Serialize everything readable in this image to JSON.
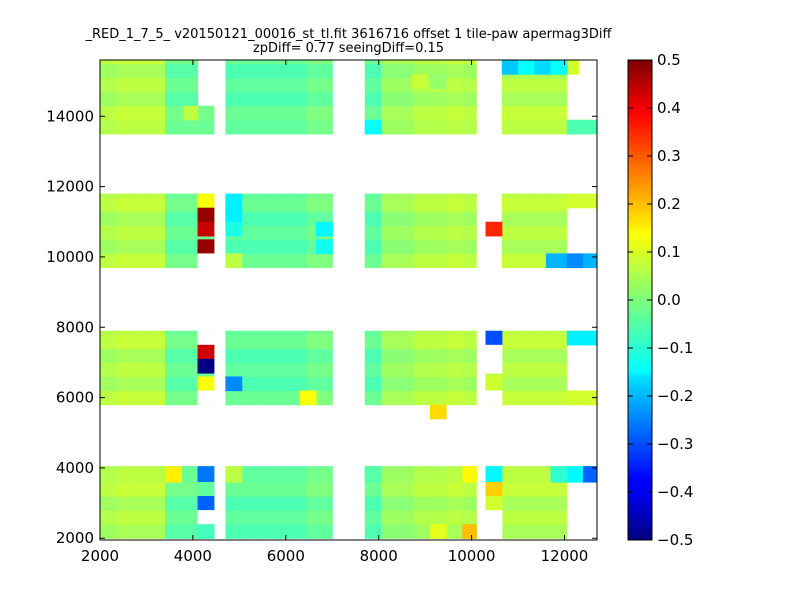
{
  "chart_data": {
    "type": "heatmap",
    "title": "_RED_1_7_5_ v20150121_00016_st_tl.fit 3616716 offset 1 tile-paw apermag3Diff",
    "subtitle": "zpDiff= 0.77 seeingDiff=0.15",
    "xlabel": "",
    "ylabel": "",
    "xlim": [
      2000,
      12700
    ],
    "ylim": [
      1950,
      15600
    ],
    "x_ticks": [
      2000,
      4000,
      6000,
      8000,
      10000,
      12000
    ],
    "x_tick_labels": [
      "2000",
      "4000",
      "6000",
      "8000",
      "10000",
      "12000"
    ],
    "y_ticks": [
      2000,
      4000,
      6000,
      8000,
      10000,
      12000,
      14000
    ],
    "y_tick_labels": [
      "2000",
      "4000",
      "6000",
      "8000",
      "10000",
      "12000",
      "14000"
    ],
    "grid": false,
    "colormap": "jet",
    "colorbar": {
      "vmin": -0.5,
      "vmax": 0.5,
      "ticks": [
        0.5,
        0.4,
        0.3,
        0.2,
        0.1,
        0.0,
        -0.1,
        -0.2,
        -0.3,
        -0.4,
        -0.5
      ],
      "tick_labels": [
        "0.5",
        "0.4",
        "0.3",
        "0.2",
        "0.1",
        "0.0",
        "−0.1",
        "−0.2",
        "−0.3",
        "−0.4",
        "−0.5"
      ]
    },
    "cell_width": 350,
    "cell_height": 400,
    "default_values": {
      "col_values": [
        0.04,
        0.05,
        0.05,
        0.05,
        -0.03,
        -0.03,
        -0.03,
        -0.04,
        -0.04,
        -0.04,
        -0.04,
        -0.04,
        -0.02,
        -0.02,
        -0.03,
        -0.03,
        -0.04,
        0.02,
        0.02,
        0.04,
        0.04,
        0.05,
        0.04,
        0.05,
        0.05,
        0.05,
        0.05,
        0.05,
        0.06,
        0.06,
        0.06,
        0.06,
        0.07,
        0.06
      ],
      "row_values": [
        -0.01,
        0.01,
        -0.01,
        0.02,
        0.01,
        0.0,
        0.01,
        -0.01,
        0.01,
        0.02
      ]
    },
    "blocks": [
      {
        "x": [
          2000,
          4100
        ],
        "y": [
          2000,
          4050
        ]
      },
      {
        "x": [
          4100,
          4450
        ],
        "y": [
          2000,
          4050
        ]
      },
      {
        "x": [
          4700,
          7000
        ],
        "y": [
          2000,
          4050
        ]
      },
      {
        "x": [
          7700,
          10100
        ],
        "y": [
          2000,
          4050
        ]
      },
      {
        "x": [
          10300,
          10650
        ],
        "y": [
          2000,
          4050
        ]
      },
      {
        "x": [
          10650,
          12050
        ],
        "y": [
          2000,
          4050
        ]
      },
      {
        "x": [
          12050,
          12700
        ],
        "y": [
          3600,
          4050
        ]
      },
      {
        "x": [
          2000,
          4100
        ],
        "y": [
          5800,
          7900
        ]
      },
      {
        "x": [
          4100,
          4450
        ],
        "y": [
          5800,
          7900
        ]
      },
      {
        "x": [
          4700,
          7000
        ],
        "y": [
          5800,
          7900
        ]
      },
      {
        "x": [
          7700,
          10100
        ],
        "y": [
          5800,
          7900
        ]
      },
      {
        "x": [
          10300,
          10650
        ],
        "y": [
          5800,
          7900
        ]
      },
      {
        "x": [
          10650,
          12050
        ],
        "y": [
          5800,
          7900
        ]
      },
      {
        "x": [
          12050,
          12700
        ],
        "y": [
          5800,
          6200
        ]
      },
      {
        "x": [
          12050,
          12700
        ],
        "y": [
          7500,
          7900
        ]
      },
      {
        "x": [
          2000,
          4100
        ],
        "y": [
          9700,
          11800
        ]
      },
      {
        "x": [
          4100,
          4450
        ],
        "y": [
          9700,
          11800
        ]
      },
      {
        "x": [
          4700,
          7000
        ],
        "y": [
          9700,
          11800
        ]
      },
      {
        "x": [
          7700,
          10100
        ],
        "y": [
          9700,
          11800
        ]
      },
      {
        "x": [
          10650,
          12050
        ],
        "y": [
          9700,
          11800
        ]
      },
      {
        "x": [
          12050,
          12700
        ],
        "y": [
          9700,
          10100
        ]
      },
      {
        "x": [
          12050,
          12700
        ],
        "y": [
          11400,
          11800
        ]
      },
      {
        "x": [
          2000,
          4100
        ],
        "y": [
          13500,
          15600
        ]
      },
      {
        "x": [
          4100,
          4450
        ],
        "y": [
          13500,
          14300
        ]
      },
      {
        "x": [
          4700,
          7000
        ],
        "y": [
          13500,
          15600
        ]
      },
      {
        "x": [
          7700,
          10100
        ],
        "y": [
          13500,
          15600
        ]
      },
      {
        "x": [
          10650,
          12050
        ],
        "y": [
          13500,
          15600
        ]
      },
      {
        "x": [
          12050,
          12700
        ],
        "y": [
          13500,
          13900
        ]
      },
      {
        "x": [
          12050,
          12300
        ],
        "y": [
          15200,
          15600
        ]
      }
    ],
    "special_cells": [
      {
        "x": 9100,
        "y": 5400,
        "w": 350,
        "h": 400,
        "value": 0.16
      },
      {
        "x": 10300,
        "y": 10600,
        "w": 350,
        "h": 400,
        "value": 0.34
      },
      {
        "x": 4100,
        "y": 11400,
        "w": 350,
        "h": 400,
        "value": 0.12
      },
      {
        "x": 4100,
        "y": 11000,
        "w": 350,
        "h": 400,
        "value": 0.48
      },
      {
        "x": 4100,
        "y": 10600,
        "w": 350,
        "h": 400,
        "value": 0.43
      },
      {
        "x": 4100,
        "y": 10100,
        "w": 350,
        "h": 400,
        "value": 0.48
      },
      {
        "x": 4100,
        "y": 9700,
        "w": 350,
        "h": 400,
        "value": null
      },
      {
        "x": 4700,
        "y": 11400,
        "w": 350,
        "h": 400,
        "value": -0.14
      },
      {
        "x": 4700,
        "y": 11000,
        "w": 350,
        "h": 400,
        "value": -0.14
      },
      {
        "x": 4700,
        "y": 10600,
        "w": 350,
        "h": 400,
        "value": -0.1
      },
      {
        "x": 4700,
        "y": 9700,
        "w": 350,
        "h": 400,
        "value": 0.06
      },
      {
        "x": 6650,
        "y": 10600,
        "w": 350,
        "h": 400,
        "value": -0.13
      },
      {
        "x": 6650,
        "y": 10100,
        "w": 350,
        "h": 400,
        "value": -0.11
      },
      {
        "x": 11600,
        "y": 9700,
        "w": 450,
        "h": 400,
        "value": -0.2
      },
      {
        "x": 12050,
        "y": 9700,
        "w": 350,
        "h": 400,
        "value": -0.24
      },
      {
        "x": 12400,
        "y": 9700,
        "w": 300,
        "h": 400,
        "value": -0.2
      },
      {
        "x": 4100,
        "y": 7500,
        "w": 350,
        "h": 400,
        "value": null
      },
      {
        "x": 4100,
        "y": 7100,
        "w": 350,
        "h": 400,
        "value": 0.42
      },
      {
        "x": 4100,
        "y": 6700,
        "w": 350,
        "h": 400,
        "value": -0.5
      },
      {
        "x": 4100,
        "y": 6200,
        "w": 350,
        "h": 400,
        "value": 0.12
      },
      {
        "x": 4100,
        "y": 5800,
        "w": 350,
        "h": 400,
        "value": null
      },
      {
        "x": 4700,
        "y": 6200,
        "w": 350,
        "h": 400,
        "value": -0.24
      },
      {
        "x": 6300,
        "y": 5800,
        "w": 350,
        "h": 400,
        "value": 0.12
      },
      {
        "x": 10300,
        "y": 7500,
        "w": 350,
        "h": 400,
        "value": -0.3
      },
      {
        "x": 10300,
        "y": 7100,
        "w": 350,
        "h": 400,
        "value": null
      },
      {
        "x": 10300,
        "y": 6700,
        "w": 350,
        "h": 400,
        "value": null
      },
      {
        "x": 10300,
        "y": 6200,
        "w": 350,
        "h": 400,
        "value": 0.08
      },
      {
        "x": 10300,
        "y": 5800,
        "w": 350,
        "h": 400,
        "value": null
      },
      {
        "x": 12050,
        "y": 7500,
        "w": 350,
        "h": 400,
        "value": -0.14
      },
      {
        "x": 12400,
        "y": 7500,
        "w": 300,
        "h": 400,
        "value": -0.14
      },
      {
        "x": 4100,
        "y": 3600,
        "w": 350,
        "h": 450,
        "value": -0.26
      },
      {
        "x": 4100,
        "y": 3200,
        "w": 350,
        "h": 400,
        "value": -0.03
      },
      {
        "x": 4100,
        "y": 2800,
        "w": 350,
        "h": 400,
        "value": -0.28
      },
      {
        "x": 4100,
        "y": 2400,
        "w": 350,
        "h": 400,
        "value": null
      },
      {
        "x": 4100,
        "y": 2000,
        "w": 350,
        "h": 400,
        "value": -0.06
      },
      {
        "x": 3400,
        "y": 3600,
        "w": 350,
        "h": 450,
        "value": 0.14
      },
      {
        "x": 4700,
        "y": 3600,
        "w": 350,
        "h": 450,
        "value": 0.06
      },
      {
        "x": 7700,
        "y": 3600,
        "w": 350,
        "h": 450,
        "value": -0.04
      },
      {
        "x": 9800,
        "y": 3600,
        "w": 300,
        "h": 450,
        "value": 0.13
      },
      {
        "x": 9800,
        "y": 2000,
        "w": 300,
        "h": 400,
        "value": 0.19
      },
      {
        "x": 9100,
        "y": 2000,
        "w": 350,
        "h": 400,
        "value": 0.1
      },
      {
        "x": 10300,
        "y": 3600,
        "w": 350,
        "h": 450,
        "value": -0.13
      },
      {
        "x": 10300,
        "y": 3200,
        "w": 350,
        "h": 400,
        "value": 0.17
      },
      {
        "x": 10300,
        "y": 2800,
        "w": 350,
        "h": 400,
        "value": 0.08
      },
      {
        "x": 10300,
        "y": 2400,
        "w": 350,
        "h": 400,
        "value": null
      },
      {
        "x": 10300,
        "y": 2000,
        "w": 350,
        "h": 400,
        "value": null
      },
      {
        "x": 12050,
        "y": 3600,
        "w": 350,
        "h": 450,
        "value": -0.13
      },
      {
        "x": 12400,
        "y": 3600,
        "w": 300,
        "h": 450,
        "value": -0.28
      },
      {
        "x": 11700,
        "y": 3600,
        "w": 350,
        "h": 450,
        "value": -0.08
      },
      {
        "x": 7700,
        "y": 13500,
        "w": 350,
        "h": 400,
        "value": -0.12
      },
      {
        "x": 10650,
        "y": 15200,
        "w": 350,
        "h": 400,
        "value": -0.18
      },
      {
        "x": 11000,
        "y": 15200,
        "w": 350,
        "h": 400,
        "value": -0.12
      },
      {
        "x": 11350,
        "y": 15200,
        "w": 350,
        "h": 400,
        "value": -0.16
      },
      {
        "x": 11700,
        "y": 15200,
        "w": 350,
        "h": 400,
        "value": -0.12
      },
      {
        "x": 12050,
        "y": 13500,
        "w": 650,
        "h": 400,
        "value": -0.05
      },
      {
        "x": 8700,
        "y": 14800,
        "w": 350,
        "h": 400,
        "value": 0.07
      },
      {
        "x": 9100,
        "y": 14800,
        "w": 350,
        "h": 400,
        "value": 0.02
      },
      {
        "x": 3800,
        "y": 13900,
        "w": 300,
        "h": 400,
        "value": 0.06
      }
    ]
  }
}
